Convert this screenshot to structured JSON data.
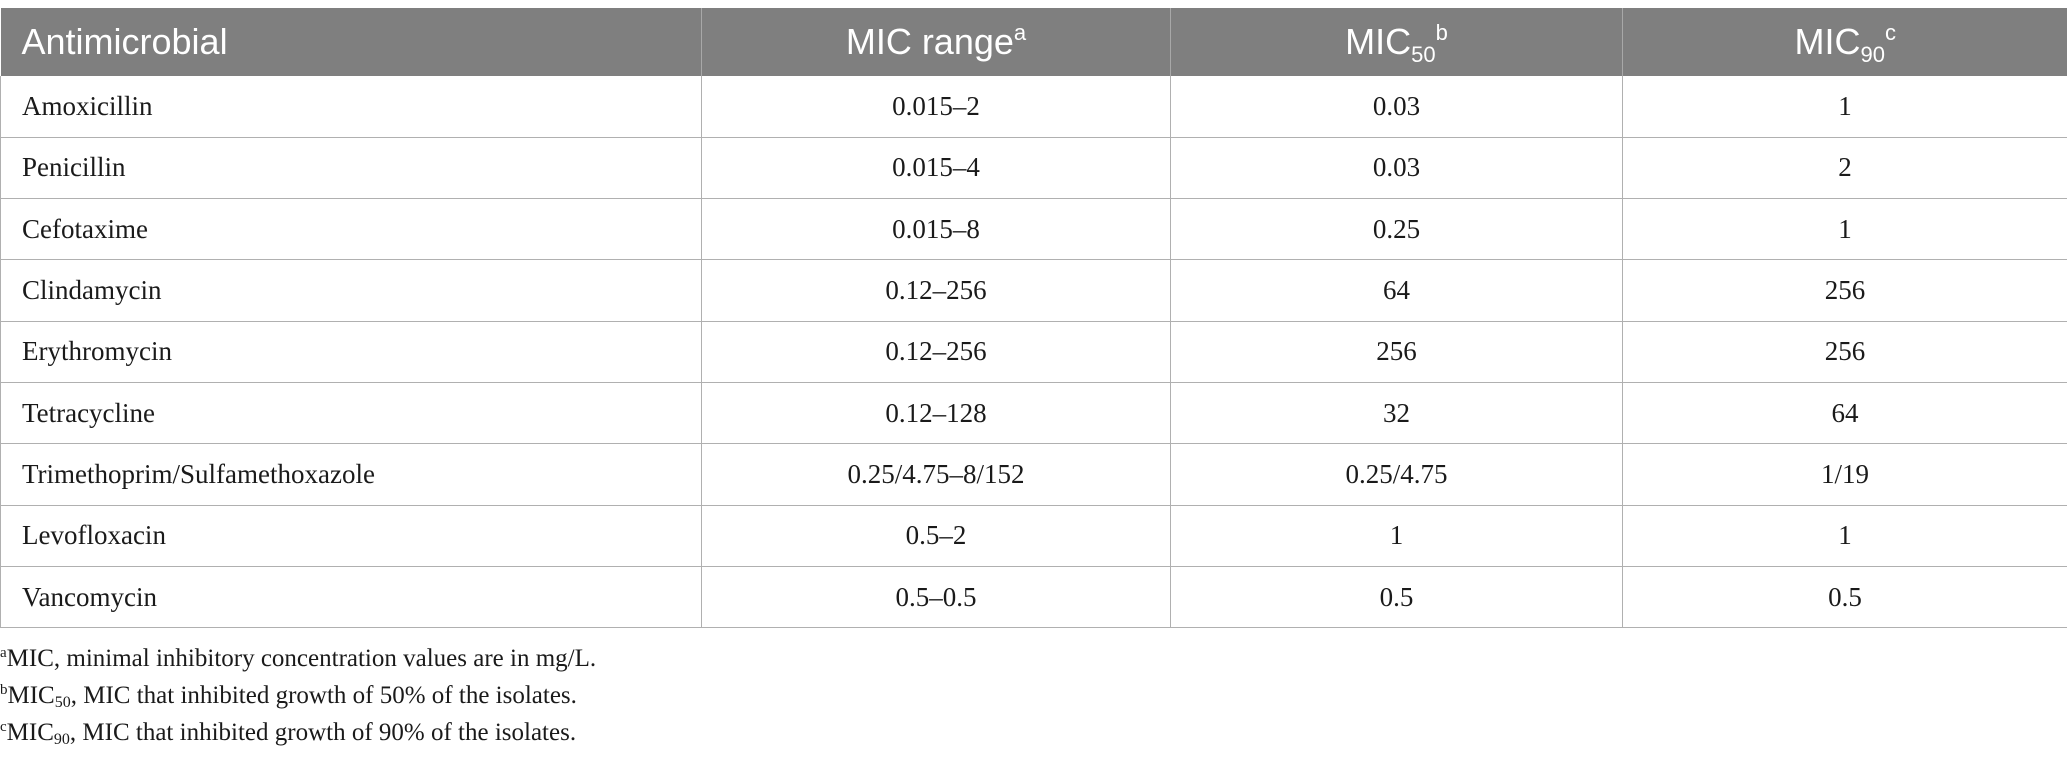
{
  "table": {
    "headers": {
      "antimicrobial": "Antimicrobial",
      "mic_range": {
        "text": "MIC range",
        "sup": "a"
      },
      "mic50": {
        "text": "MIC",
        "sub": "50",
        "sup": "b"
      },
      "mic90": {
        "text": "MIC",
        "sub": "90",
        "sup": "c"
      }
    },
    "rows": [
      {
        "antimicrobial": "Amoxicillin",
        "mic_range": "0.015–2",
        "mic50": "0.03",
        "mic90": "1"
      },
      {
        "antimicrobial": "Penicillin",
        "mic_range": "0.015–4",
        "mic50": "0.03",
        "mic90": "2"
      },
      {
        "antimicrobial": "Cefotaxime",
        "mic_range": "0.015–8",
        "mic50": "0.25",
        "mic90": "1"
      },
      {
        "antimicrobial": "Clindamycin",
        "mic_range": "0.12–256",
        "mic50": "64",
        "mic90": "256"
      },
      {
        "antimicrobial": "Erythromycin",
        "mic_range": "0.12–256",
        "mic50": "256",
        "mic90": "256"
      },
      {
        "antimicrobial": "Tetracycline",
        "mic_range": "0.12–128",
        "mic50": "32",
        "mic90": "64"
      },
      {
        "antimicrobial": "Trimethoprim/Sulfamethoxazole",
        "mic_range": "0.25/4.75–8/152",
        "mic50": "0.25/4.75",
        "mic90": "1/19"
      },
      {
        "antimicrobial": "Levofloxacin",
        "mic_range": "0.5–2",
        "mic50": "1",
        "mic90": "1"
      },
      {
        "antimicrobial": "Vancomycin",
        "mic_range": "0.5–0.5",
        "mic50": "0.5",
        "mic90": "0.5"
      }
    ]
  },
  "footnotes": [
    {
      "mark": "a",
      "term": "",
      "sub": "",
      "text": "MIC, minimal inhibitory concentration values are in mg/L."
    },
    {
      "mark": "b",
      "term": "MIC",
      "sub": "50",
      "text": ", MIC that inhibited growth of 50% of the isolates."
    },
    {
      "mark": "c",
      "term": "MIC",
      "sub": "90",
      "text": ", MIC that inhibited growth of 90% of the isolates."
    }
  ],
  "colors": {
    "header_background": "#7f7f7f",
    "header_text": "#ffffff",
    "grid_lines": "#b0b0b0",
    "body_text": "#1a1a1a"
  }
}
